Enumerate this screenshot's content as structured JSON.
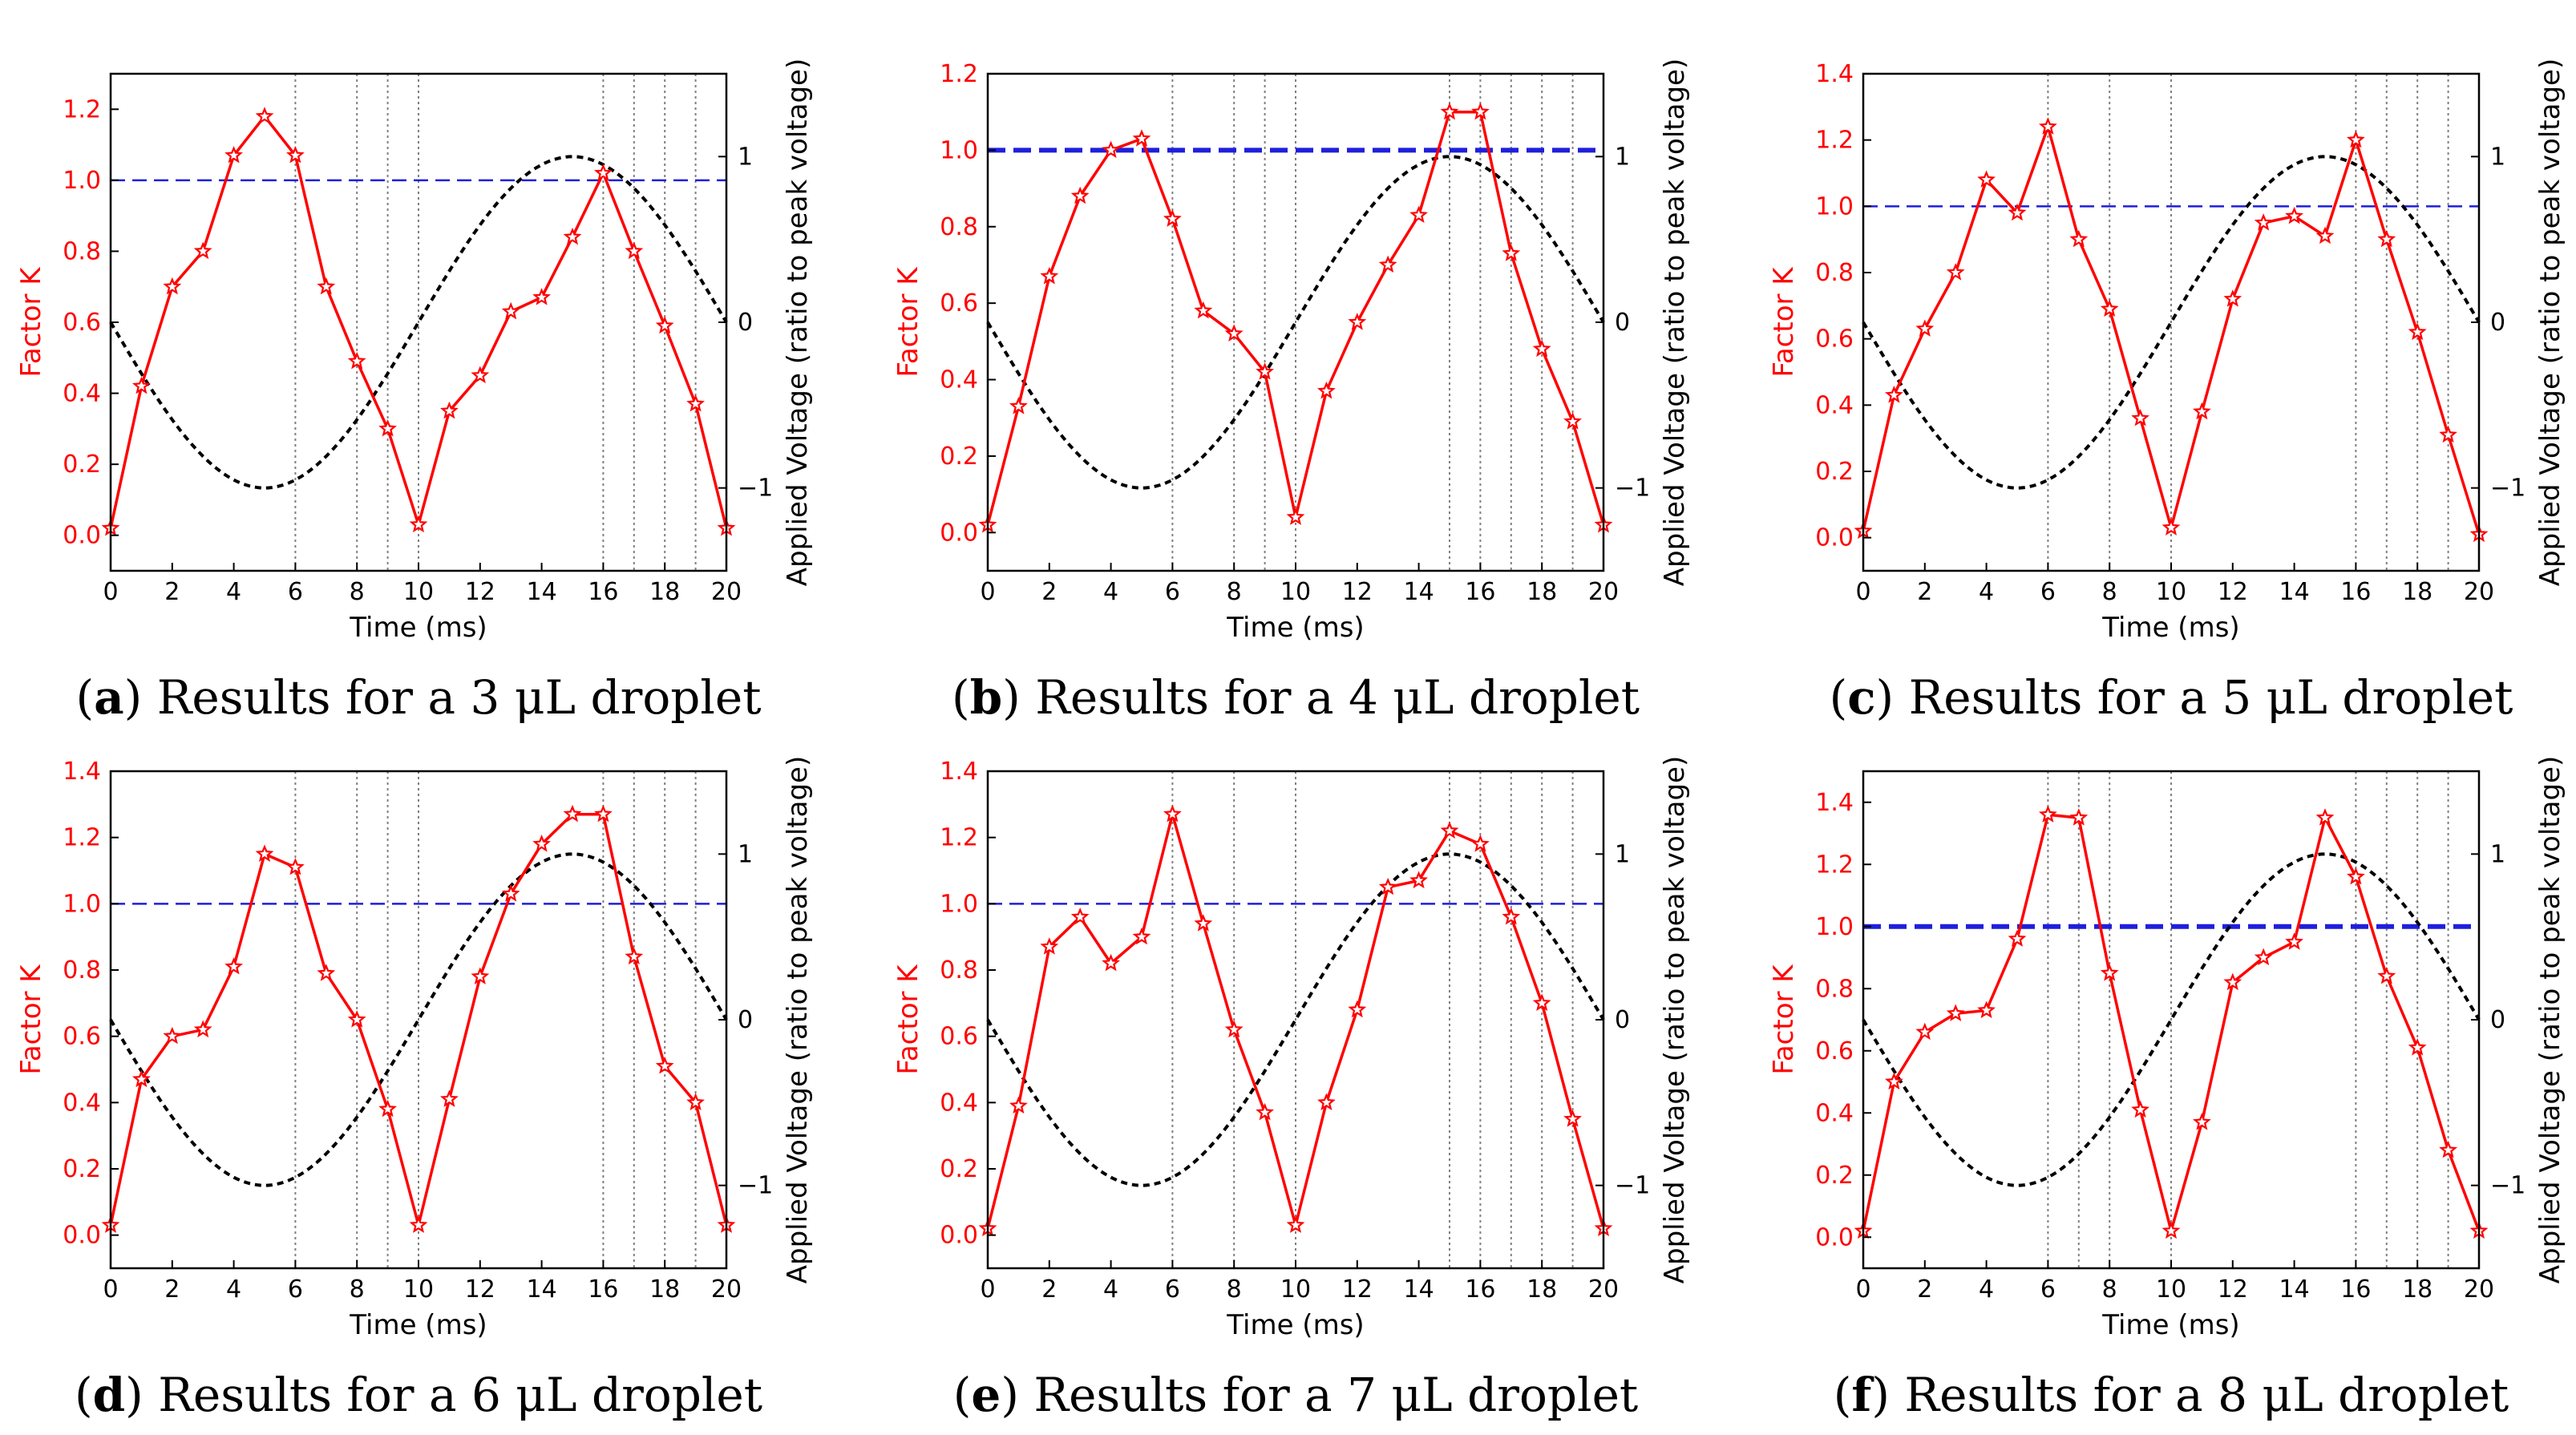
{
  "shared": {
    "xlabel": "Time (ms)",
    "ylabel_left": "Factor K",
    "ylabel_right": "Applied Voltage (ratio to peak voltage)",
    "x_ticks": [
      0,
      2,
      4,
      6,
      8,
      10,
      12,
      14,
      16,
      18,
      20
    ],
    "right_ticks": [
      {
        "value": 1,
        "label": "1"
      },
      {
        "value": 0,
        "label": "0"
      },
      {
        "value": -1,
        "label": "−1"
      }
    ],
    "colors": {
      "factor_k": "#ff0000",
      "threshold": "#1f1fdc",
      "voltage": "#000000",
      "frame": "#000000",
      "guide": "#808080"
    }
  },
  "chart_data": [
    {
      "type": "line",
      "panel": "a",
      "caption_letter": "a",
      "caption_text": " Results for a 3 μL droplet",
      "x": [
        0,
        1,
        2,
        3,
        4,
        5,
        6,
        7,
        8,
        9,
        10,
        11,
        12,
        13,
        14,
        15,
        16,
        17,
        18,
        19,
        20
      ],
      "factor_k": [
        0.02,
        0.42,
        0.7,
        0.8,
        1.07,
        1.18,
        1.07,
        0.7,
        0.49,
        0.3,
        0.03,
        0.35,
        0.45,
        0.63,
        0.67,
        0.84,
        1.02,
        0.8,
        0.59,
        0.37,
        0.02
      ],
      "yticks": [
        0.0,
        0.2,
        0.4,
        0.6,
        0.8,
        1.0,
        1.2
      ],
      "ylim": [
        -0.1,
        1.3
      ],
      "xlim": [
        0,
        20
      ],
      "y2lim": [
        -1.5,
        1.5
      ],
      "threshold": 1.0,
      "threshold_bold": false,
      "voltage": {
        "phase_ms": 5,
        "amplitude": 1.0
      },
      "guides": [
        6,
        8,
        9,
        10,
        16,
        17,
        18,
        19
      ]
    },
    {
      "type": "line",
      "panel": "b",
      "caption_letter": "b",
      "caption_text": " Results for a 4 μL droplet",
      "x": [
        0,
        1,
        2,
        3,
        4,
        5,
        6,
        7,
        8,
        9,
        10,
        11,
        12,
        13,
        14,
        15,
        16,
        17,
        18,
        19,
        20
      ],
      "factor_k": [
        0.02,
        0.33,
        0.67,
        0.88,
        1.0,
        1.03,
        0.82,
        0.58,
        0.52,
        0.42,
        0.04,
        0.37,
        0.55,
        0.7,
        0.83,
        1.1,
        1.1,
        0.73,
        0.48,
        0.29,
        0.02
      ],
      "yticks": [
        0.0,
        0.2,
        0.4,
        0.6,
        0.8,
        1.0,
        1.2
      ],
      "ylim": [
        -0.1,
        1.2
      ],
      "xlim": [
        0,
        20
      ],
      "y2lim": [
        -1.5,
        1.5
      ],
      "threshold": 1.0,
      "threshold_bold": true,
      "voltage": {
        "phase_ms": 5,
        "amplitude": 1.0
      },
      "guides": [
        6,
        8,
        9,
        10,
        15,
        16,
        17,
        18,
        19
      ]
    },
    {
      "type": "line",
      "panel": "c",
      "caption_letter": "c",
      "caption_text": " Results for a 5 μL droplet",
      "x": [
        0,
        1,
        2,
        3,
        4,
        5,
        6,
        7,
        8,
        9,
        10,
        11,
        12,
        13,
        14,
        15,
        16,
        17,
        18,
        19,
        20
      ],
      "factor_k": [
        0.02,
        0.43,
        0.63,
        0.8,
        1.08,
        0.98,
        1.24,
        0.9,
        0.69,
        0.36,
        0.03,
        0.38,
        0.72,
        0.95,
        0.97,
        0.91,
        1.2,
        0.9,
        0.62,
        0.31,
        0.01
      ],
      "yticks": [
        0.0,
        0.2,
        0.4,
        0.6,
        0.8,
        1.0,
        1.2,
        1.4
      ],
      "ylim": [
        -0.1,
        1.4
      ],
      "xlim": [
        0,
        20
      ],
      "y2lim": [
        -1.5,
        1.5
      ],
      "threshold": 1.0,
      "threshold_bold": false,
      "voltage": {
        "phase_ms": 5,
        "amplitude": 1.0
      },
      "guides": [
        6,
        8,
        10,
        16,
        17,
        18,
        19
      ]
    },
    {
      "type": "line",
      "panel": "d",
      "caption_letter": "d",
      "caption_text": " Results for a 6 μL droplet",
      "x": [
        0,
        1,
        2,
        3,
        4,
        5,
        6,
        7,
        8,
        9,
        10,
        11,
        12,
        13,
        14,
        15,
        16,
        17,
        18,
        19,
        20
      ],
      "factor_k": [
        0.03,
        0.47,
        0.6,
        0.62,
        0.81,
        1.15,
        1.11,
        0.79,
        0.65,
        0.38,
        0.03,
        0.41,
        0.78,
        1.03,
        1.18,
        1.27,
        1.27,
        0.84,
        0.51,
        0.4,
        0.03
      ],
      "yticks": [
        0.0,
        0.2,
        0.4,
        0.6,
        0.8,
        1.0,
        1.2,
        1.4
      ],
      "ylim": [
        -0.1,
        1.4
      ],
      "xlim": [
        0,
        20
      ],
      "y2lim": [
        -1.5,
        1.5
      ],
      "threshold": 1.0,
      "threshold_bold": false,
      "voltage": {
        "phase_ms": 5,
        "amplitude": 1.0
      },
      "guides": [
        6,
        8,
        9,
        10,
        16,
        17,
        18,
        19
      ]
    },
    {
      "type": "line",
      "panel": "e",
      "caption_letter": "e",
      "caption_text": " Results for a 7 μL droplet",
      "x": [
        0,
        1,
        2,
        3,
        4,
        5,
        6,
        7,
        8,
        9,
        10,
        11,
        12,
        13,
        14,
        15,
        16,
        17,
        18,
        19,
        20
      ],
      "factor_k": [
        0.02,
        0.39,
        0.87,
        0.96,
        0.82,
        0.9,
        1.27,
        0.94,
        0.62,
        0.37,
        0.03,
        0.4,
        0.68,
        1.05,
        1.07,
        1.22,
        1.18,
        0.96,
        0.7,
        0.35,
        0.02
      ],
      "yticks": [
        0.0,
        0.2,
        0.4,
        0.6,
        0.8,
        1.0,
        1.2,
        1.4
      ],
      "ylim": [
        -0.1,
        1.4
      ],
      "xlim": [
        0,
        20
      ],
      "y2lim": [
        -1.5,
        1.5
      ],
      "threshold": 1.0,
      "threshold_bold": false,
      "voltage": {
        "phase_ms": 5,
        "amplitude": 1.0
      },
      "guides": [
        6,
        8,
        10,
        15,
        16,
        17,
        18,
        19
      ]
    },
    {
      "type": "line",
      "panel": "f",
      "caption_letter": "f",
      "caption_text": " Results for a 8 μL droplet",
      "x": [
        0,
        1,
        2,
        3,
        4,
        5,
        6,
        7,
        8,
        9,
        10,
        11,
        12,
        13,
        14,
        15,
        16,
        17,
        18,
        19,
        20
      ],
      "factor_k": [
        0.02,
        0.5,
        0.66,
        0.72,
        0.73,
        0.96,
        1.36,
        1.35,
        0.85,
        0.41,
        0.02,
        0.37,
        0.82,
        0.9,
        0.95,
        1.35,
        1.16,
        0.84,
        0.61,
        0.28,
        0.02
      ],
      "yticks": [
        0.0,
        0.2,
        0.4,
        0.6,
        0.8,
        1.0,
        1.2,
        1.4
      ],
      "ylim": [
        -0.1,
        1.5
      ],
      "xlim": [
        0,
        20
      ],
      "y2lim": [
        -1.5,
        1.5
      ],
      "threshold": 1.0,
      "threshold_bold": true,
      "voltage": {
        "phase_ms": 5,
        "amplitude": 1.0
      },
      "guides": [
        6,
        7,
        8,
        10,
        16,
        17,
        18,
        19
      ]
    }
  ]
}
